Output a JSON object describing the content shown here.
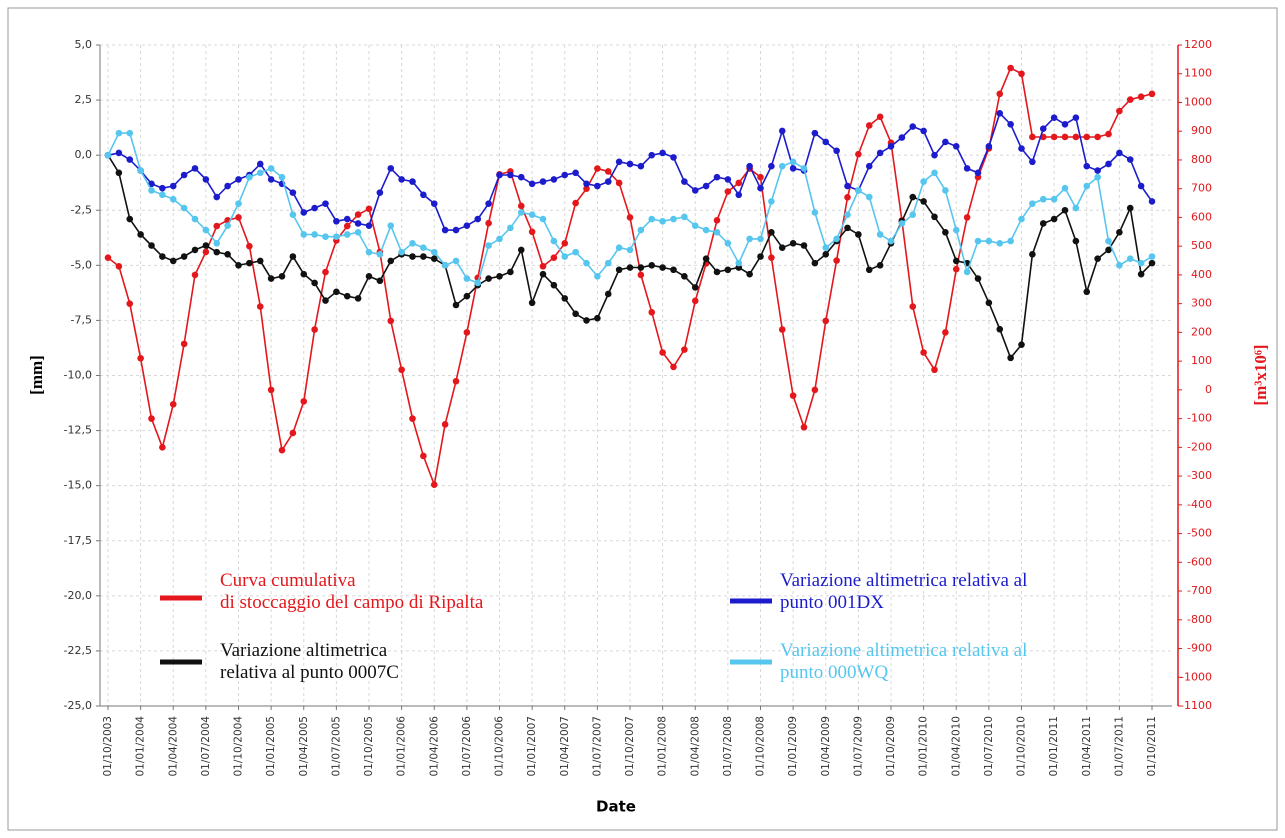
{
  "chart_data": {
    "type": "line",
    "x_label": "Date",
    "y_label": "[mm]",
    "y2_label": "[m³x10⁶]",
    "x": [
      "01/10/2003",
      "01/11/2003",
      "01/12/2003",
      "01/01/2004",
      "01/02/2004",
      "01/03/2004",
      "01/04/2004",
      "01/05/2004",
      "01/06/2004",
      "01/07/2004",
      "01/08/2004",
      "01/09/2004",
      "01/10/2004",
      "01/11/2004",
      "01/12/2004",
      "01/01/2005",
      "01/02/2005",
      "01/03/2005",
      "01/04/2005",
      "01/05/2005",
      "01/06/2005",
      "01/07/2005",
      "01/08/2005",
      "01/09/2005",
      "01/10/2005",
      "01/11/2005",
      "01/12/2005",
      "01/01/2006",
      "01/02/2006",
      "01/03/2006",
      "01/04/2006",
      "01/05/2006",
      "01/06/2006",
      "01/07/2006",
      "01/08/2006",
      "01/09/2006",
      "01/10/2006",
      "01/11/2006",
      "01/12/2006",
      "01/01/2007",
      "01/02/2007",
      "01/03/2007",
      "01/04/2007",
      "01/05/2007",
      "01/06/2007",
      "01/07/2007",
      "01/08/2007",
      "01/09/2007",
      "01/10/2007",
      "01/11/2007",
      "01/12/2007",
      "01/01/2008",
      "01/02/2008",
      "01/03/2008",
      "01/04/2008",
      "01/05/2008",
      "01/06/2008",
      "01/07/2008",
      "01/08/2008",
      "01/09/2008",
      "01/10/2008",
      "01/11/2008",
      "01/12/2008",
      "01/01/2009",
      "01/02/2009",
      "01/03/2009",
      "01/04/2009",
      "01/05/2009",
      "01/06/2009",
      "01/07/2009",
      "01/08/2009",
      "01/09/2009",
      "01/10/2009",
      "01/11/2009",
      "01/12/2009",
      "01/01/2010",
      "01/02/2010",
      "01/03/2010",
      "01/04/2010",
      "01/05/2010",
      "01/06/2010",
      "01/07/2010",
      "01/08/2010",
      "01/09/2010",
      "01/10/2010",
      "01/11/2010",
      "01/12/2010",
      "01/01/2011",
      "01/02/2011",
      "01/03/2011",
      "01/04/2011",
      "01/05/2011",
      "01/06/2011",
      "01/07/2011",
      "01/08/2011",
      "01/09/2011",
      "01/10/2011"
    ],
    "series": [
      {
        "name": "Curva cumulativa\ndi stoccaggio del campo di Ripalta",
        "color": "#e3171c",
        "axis": "y2",
        "values": [
          460,
          430,
          300,
          110,
          -100,
          -200,
          -50,
          160,
          400,
          480,
          570,
          590,
          600,
          500,
          290,
          0,
          -210,
          -150,
          -40,
          210,
          410,
          520,
          570,
          610,
          630,
          480,
          240,
          70,
          -100,
          -230,
          -330,
          -120,
          30,
          200,
          390,
          580,
          750,
          760,
          640,
          550,
          430,
          460,
          510,
          650,
          700,
          770,
          760,
          720,
          600,
          400,
          270,
          130,
          80,
          140,
          310,
          440,
          590,
          690,
          720,
          770,
          740,
          460,
          210,
          -20,
          -130,
          0,
          240,
          450,
          670,
          820,
          920,
          950,
          860,
          590,
          290,
          130,
          70,
          200,
          420,
          600,
          740,
          840,
          1030,
          1120,
          1100,
          880,
          880,
          880,
          880,
          880,
          880,
          880,
          890,
          970,
          1010,
          1020,
          1030
        ]
      },
      {
        "name": "Variazione altimetrica\nrelativa al punto 0007C",
        "color": "#111111",
        "values": [
          0,
          -0.8,
          -2.9,
          -3.6,
          -4.1,
          -4.6,
          -4.8,
          -4.6,
          -4.3,
          -4.1,
          -4.4,
          -4.5,
          -5.0,
          -4.9,
          -4.8,
          -5.6,
          -5.5,
          -4.6,
          -5.4,
          -5.8,
          -6.6,
          -6.2,
          -6.4,
          -6.5,
          -5.5,
          -5.7,
          -4.8,
          -4.5,
          -4.6,
          -4.6,
          -4.7,
          -5.0,
          -6.8,
          -6.4,
          -5.9,
          -5.6,
          -5.5,
          -5.3,
          -4.3,
          -6.7,
          -5.4,
          -5.9,
          -6.5,
          -7.2,
          -7.5,
          -7.4,
          -6.3,
          -5.2,
          -5.1,
          -5.1,
          -5.0,
          -5.1,
          -5.2,
          -5.5,
          -6.0,
          -4.7,
          -5.3,
          -5.2,
          -5.1,
          -5.4,
          -4.6,
          -3.5,
          -4.2,
          -4.0,
          -4.1,
          -4.9,
          -4.5,
          -3.9,
          -3.3,
          -3.6,
          -5.2,
          -5.0,
          -4.0,
          -3.0,
          -1.9,
          -2.1,
          -2.8,
          -3.5,
          -4.8,
          -4.9,
          -5.6,
          -6.7,
          -7.9,
          -9.2,
          -8.6,
          -4.5,
          -3.1,
          -2.9,
          -2.5,
          -3.9,
          -6.2,
          -4.7,
          -4.3,
          -3.5,
          -2.4,
          -5.4,
          -4.9
        ]
      },
      {
        "name": "Variazione altimetrica relativa al\npunto 001DX",
        "color": "#1c1ccc",
        "values": [
          0.0,
          0.1,
          -0.2,
          -0.7,
          -1.3,
          -1.5,
          -1.4,
          -0.9,
          -0.6,
          -1.1,
          -1.9,
          -1.4,
          -1.1,
          -0.9,
          -0.4,
          -1.1,
          -1.3,
          -1.7,
          -2.6,
          -2.4,
          -2.2,
          -3.0,
          -2.9,
          -3.1,
          -3.2,
          -1.7,
          -0.6,
          -1.1,
          -1.2,
          -1.8,
          -2.2,
          -3.4,
          -3.4,
          -3.2,
          -2.9,
          -2.2,
          -0.9,
          -0.9,
          -1.0,
          -1.3,
          -1.2,
          -1.1,
          -0.9,
          -0.8,
          -1.3,
          -1.4,
          -1.2,
          -0.3,
          -0.4,
          -0.5,
          0.0,
          0.1,
          -0.1,
          -1.2,
          -1.6,
          -1.4,
          -1.0,
          -1.1,
          -1.8,
          -0.5,
          -1.5,
          -0.5,
          1.1,
          -0.6,
          -0.7,
          1.0,
          0.6,
          0.2,
          -1.4,
          -1.6,
          -0.5,
          0.1,
          0.4,
          0.8,
          1.3,
          1.1,
          0.0,
          0.6,
          0.4,
          -0.6,
          -0.8,
          0.4,
          1.9,
          1.4,
          0.3,
          -0.3,
          1.2,
          1.7,
          1.4,
          1.7,
          -0.5,
          -0.7,
          -0.4,
          0.1,
          -0.2,
          -1.4,
          -2.1
        ]
      },
      {
        "name": "Variazione altimetrica relativa al\npunto 000WQ",
        "color": "#56c6ee",
        "values": [
          0.0,
          1.0,
          1.0,
          -0.7,
          -1.6,
          -1.8,
          -2.0,
          -2.4,
          -2.9,
          -3.4,
          -4.0,
          -3.2,
          -2.2,
          -1.0,
          -0.8,
          -0.6,
          -1.0,
          -2.7,
          -3.6,
          -3.6,
          -3.7,
          -3.7,
          -3.6,
          -3.5,
          -4.4,
          -4.5,
          -3.2,
          -4.4,
          -4.0,
          -4.2,
          -4.4,
          -5.0,
          -4.8,
          -5.6,
          -5.8,
          -4.1,
          -3.8,
          -3.3,
          -2.6,
          -2.7,
          -2.9,
          -3.9,
          -4.6,
          -4.4,
          -4.9,
          -5.5,
          -4.9,
          -4.2,
          -4.3,
          -3.4,
          -2.9,
          -3.0,
          -2.9,
          -2.8,
          -3.2,
          -3.4,
          -3.5,
          -4.0,
          -4.9,
          -3.8,
          -3.8,
          -2.1,
          -0.5,
          -0.3,
          -0.6,
          -2.6,
          -4.2,
          -3.8,
          -2.7,
          -1.6,
          -1.9,
          -3.6,
          -3.9,
          -3.1,
          -2.7,
          -1.2,
          -0.8,
          -1.6,
          -3.4,
          -5.3,
          -3.9,
          -3.9,
          -4.0,
          -3.9,
          -2.9,
          -2.2,
          -2.0,
          -2.0,
          -1.5,
          -2.4,
          -1.4,
          -1.0,
          -3.9,
          -5.0,
          -4.7,
          -4.9,
          -4.6
        ]
      }
    ],
    "xlim": [
      "01/10/2003",
      "01/10/2011"
    ],
    "xticks": [
      "01/10/2003",
      "01/01/2004",
      "01/04/2004",
      "01/07/2004",
      "01/10/2004",
      "01/01/2005",
      "01/04/2005",
      "01/07/2005",
      "01/10/2005",
      "01/01/2006",
      "01/04/2006",
      "01/07/2006",
      "01/10/2006",
      "01/01/2007",
      "01/04/2007",
      "01/07/2007",
      "01/10/2007",
      "01/01/2008",
      "01/04/2008",
      "01/07/2008",
      "01/10/2008",
      "01/01/2009",
      "01/04/2009",
      "01/07/2009",
      "01/10/2009",
      "01/01/2010",
      "01/04/2010",
      "01/07/2010",
      "01/10/2010",
      "01/01/2011",
      "01/04/2011",
      "01/07/2011",
      "01/10/2011"
    ],
    "ylim": [
      -25,
      5
    ],
    "yticks": [
      {
        "value": 5,
        "label": "5,0"
      },
      {
        "value": 2.5,
        "label": "2,5"
      },
      {
        "value": 0,
        "label": "0,0"
      },
      {
        "value": -2.5,
        "label": "-2,5"
      },
      {
        "value": -5,
        "label": "-5,0"
      },
      {
        "value": -7.5,
        "label": "-7,5"
      },
      {
        "value": -10,
        "label": "-10,0"
      },
      {
        "value": -12.5,
        "label": "-12,5"
      },
      {
        "value": -15,
        "label": "-15,0"
      },
      {
        "value": -17.5,
        "label": "-17,5"
      },
      {
        "value": -20,
        "label": "-20,0"
      },
      {
        "value": -22.5,
        "label": "-22,5"
      },
      {
        "value": -25,
        "label": "-25,0"
      }
    ],
    "y2lim": [
      -1100,
      1200
    ],
    "y2ticks": [
      1200,
      1100,
      1000,
      900,
      800,
      700,
      600,
      500,
      400,
      300,
      200,
      100,
      0,
      -100,
      -200,
      -300,
      -400,
      -500,
      -600,
      -700,
      -800,
      -900,
      -1000,
      -1100
    ],
    "y2_color": "#e3171c",
    "grid": true
  }
}
